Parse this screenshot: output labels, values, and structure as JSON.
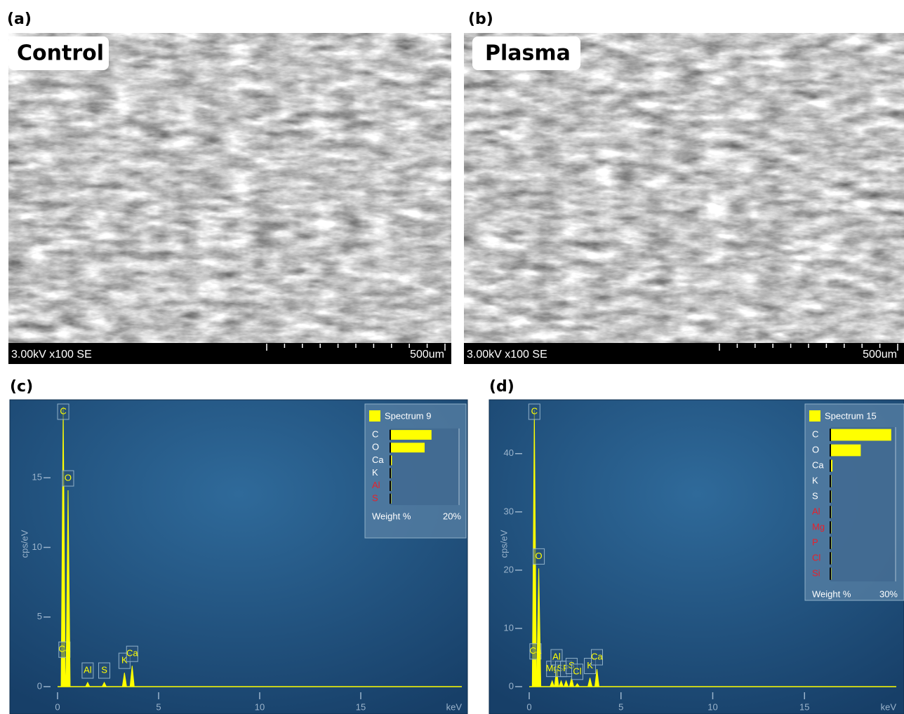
{
  "panels": [
    {
      "label": "(a)",
      "title": "Control",
      "footer": "3.00kV x100 SE",
      "scale": "500um"
    },
    {
      "label": "(b)",
      "title": "Plasma",
      "footer": "3.00kV x100 SE",
      "scale": "500um"
    }
  ],
  "charts": [
    {
      "label": "(c)",
      "type": "spectrum",
      "ylabel": "cps/eV",
      "xlabel": "keV",
      "color": "#ffff00",
      "xlim": [
        0,
        20
      ],
      "ylim": [
        0,
        20.5
      ],
      "xticks": [
        0,
        5,
        10,
        15
      ],
      "yticks": [
        0,
        5,
        10,
        15
      ],
      "peaks": {
        "labels": [
          "C",
          "Ca",
          "O",
          "Al",
          "S",
          "K",
          "Ca"
        ],
        "x": [
          0.28,
          0.34,
          0.52,
          1.49,
          2.31,
          3.31,
          3.69
        ],
        "values": [
          20.1,
          1.8,
          14.1,
          0.3,
          0.3,
          1.0,
          1.5
        ]
      },
      "inset": {
        "title": "Spectrum 9",
        "categories": [
          "C",
          "O",
          "Ca",
          "K",
          "Al",
          "S"
        ],
        "label_colors": [
          "#ffffff",
          "#ffffff",
          "#ffffff",
          "#ffffff",
          "#e8202a",
          "#e8202a"
        ],
        "values": [
          12,
          10,
          0.5,
          0.2,
          0.1,
          0.1
        ],
        "xlim": [
          0,
          20
        ],
        "xticks": [
          {
            "value": 20,
            "label": "20%"
          }
        ],
        "axis_label": "Weight %"
      }
    },
    {
      "label": "(d)",
      "type": "spectrum",
      "ylabel": "cps/eV",
      "xlabel": "keV",
      "color": "#ffff00",
      "xlim": [
        0,
        20
      ],
      "ylim": [
        0,
        49
      ],
      "xticks": [
        0,
        5,
        10,
        15
      ],
      "yticks": [
        0,
        10,
        20,
        30,
        40
      ],
      "peaks": {
        "labels": [
          "C",
          "Ca",
          "O",
          "Mg",
          "Al",
          "Si",
          "P",
          "S",
          "Cl",
          "K",
          "Ca"
        ],
        "x": [
          0.28,
          0.34,
          0.52,
          1.25,
          1.49,
          1.74,
          2.01,
          2.31,
          2.62,
          3.31,
          3.69
        ],
        "values": [
          47.5,
          4,
          20.3,
          1,
          3,
          1,
          1,
          1.5,
          0.5,
          1.5,
          3
        ]
      },
      "inset": {
        "title": "Spectrum 15",
        "categories": [
          "C",
          "O",
          "Ca",
          "K",
          "S",
          "Al",
          "Mg",
          "P",
          "Cl",
          "Si"
        ],
        "label_colors": [
          "#ffffff",
          "#ffffff",
          "#ffffff",
          "#ffffff",
          "#ffffff",
          "#e8202a",
          "#e8202a",
          "#e8202a",
          "#e8202a",
          "#e8202a"
        ],
        "values": [
          28,
          14,
          1,
          0.3,
          0.3,
          0.3,
          0.3,
          0.3,
          0.3,
          0.3
        ],
        "xlim": [
          0,
          30
        ],
        "xticks": [
          {
            "value": 30,
            "label": "30%"
          }
        ],
        "axis_label": "Weight %"
      }
    }
  ]
}
